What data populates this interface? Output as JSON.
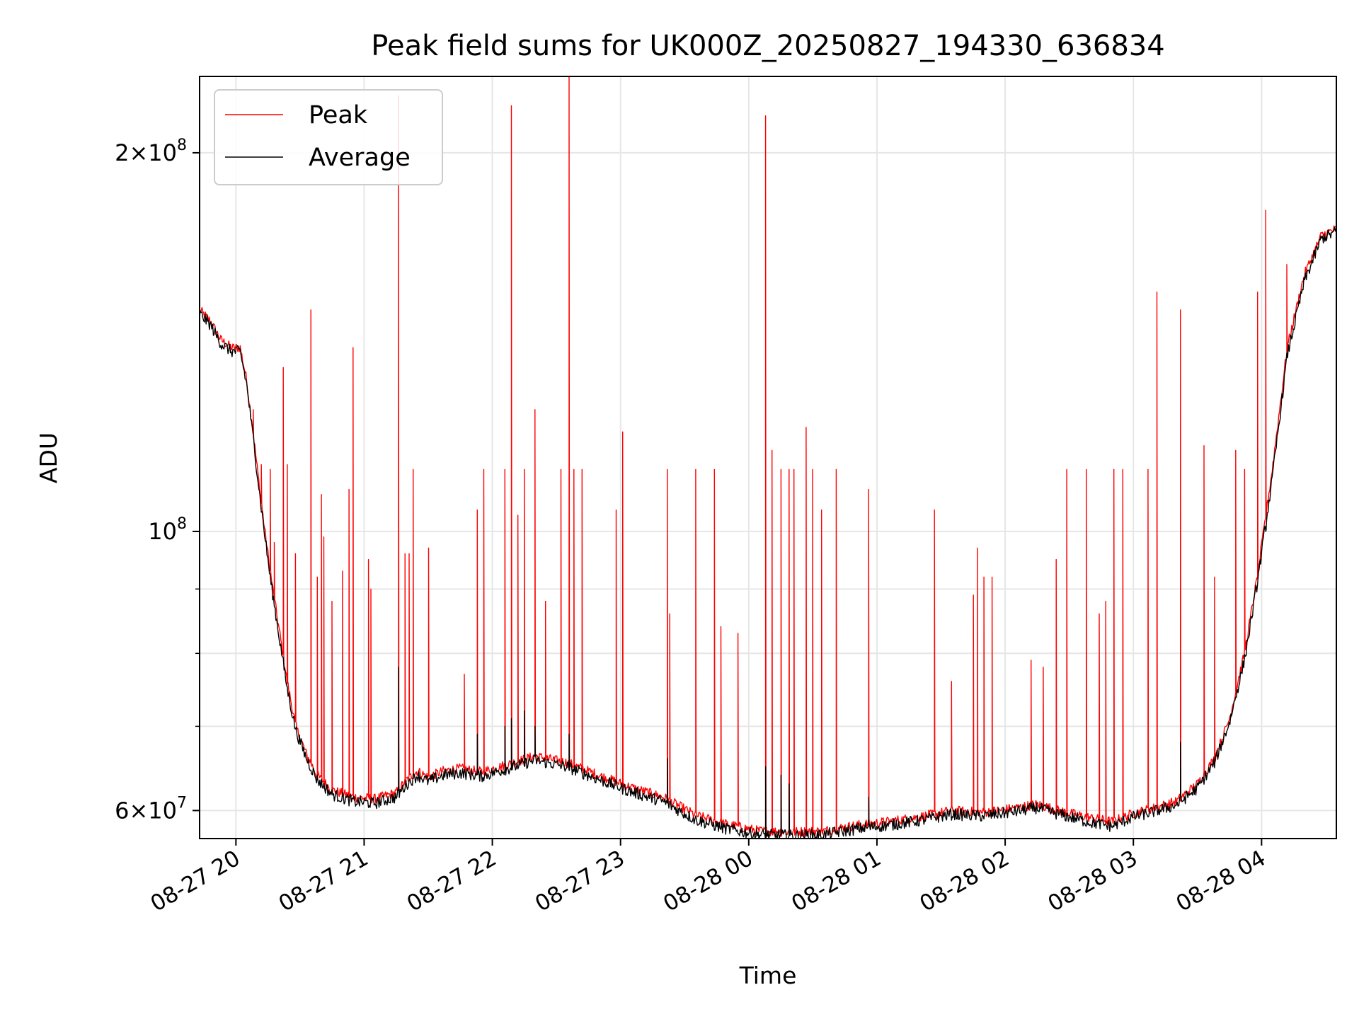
{
  "chart_data": {
    "type": "line",
    "title": "Peak field sums for UK000Z_20250827_194330_636834",
    "xlabel": "Time",
    "ylabel": "ADU",
    "y_scale": "log",
    "grid": true,
    "legend_position": "top-left",
    "xlim": [
      "2025-08-27 19:43",
      "2025-08-28 04:35"
    ],
    "ylim": [
      57000000,
      230000000
    ],
    "x_ticks": [
      {
        "t": "2025-08-27 20:00",
        "label": "08-27 20"
      },
      {
        "t": "2025-08-27 21:00",
        "label": "08-27 21"
      },
      {
        "t": "2025-08-27 22:00",
        "label": "08-27 22"
      },
      {
        "t": "2025-08-27 23:00",
        "label": "08-27 23"
      },
      {
        "t": "2025-08-28 00:00",
        "label": "08-28 00"
      },
      {
        "t": "2025-08-28 01:00",
        "label": "08-28 01"
      },
      {
        "t": "2025-08-28 02:00",
        "label": "08-28 02"
      },
      {
        "t": "2025-08-28 03:00",
        "label": "08-28 03"
      },
      {
        "t": "2025-08-28 04:00",
        "label": "08-28 04"
      }
    ],
    "y_major_ticks": [
      {
        "v": 60000000,
        "base": "6",
        "exp": "7"
      },
      {
        "v": 100000000,
        "base": "",
        "exp": "8"
      },
      {
        "v": 200000000,
        "base": "2",
        "exp": "8"
      }
    ],
    "y_minor_ticks": [
      70000000,
      80000000,
      90000000
    ],
    "times_sign": "×",
    "power_base": "10",
    "colors": {
      "peak": "#ff0000",
      "average": "#000000",
      "grid": "#e6e6e6"
    },
    "series": [
      {
        "name": "Peak",
        "color": "#ff0000",
        "baseline": [
          [
            "2025-08-27 19:43",
            150000000
          ],
          [
            "2025-08-27 19:48",
            147000000
          ],
          [
            "2025-08-27 19:53",
            142000000
          ],
          [
            "2025-08-27 19:58",
            140000000
          ],
          [
            "2025-08-27 20:02",
            140000000
          ],
          [
            "2025-08-27 20:05",
            132000000
          ],
          [
            "2025-08-27 20:08",
            120000000
          ],
          [
            "2025-08-27 20:12",
            105000000
          ],
          [
            "2025-08-27 20:16",
            93000000
          ],
          [
            "2025-08-27 20:20",
            84000000
          ],
          [
            "2025-08-27 20:24",
            76000000
          ],
          [
            "2025-08-27 20:28",
            70000000
          ],
          [
            "2025-08-27 20:33",
            66500000
          ],
          [
            "2025-08-27 20:38",
            64000000
          ],
          [
            "2025-08-27 20:45",
            62300000
          ],
          [
            "2025-08-27 20:55",
            61500000
          ],
          [
            "2025-08-27 21:05",
            61300000
          ],
          [
            "2025-08-27 21:15",
            62000000
          ],
          [
            "2025-08-27 21:20",
            63500000
          ],
          [
            "2025-08-27 21:25",
            64500000
          ],
          [
            "2025-08-27 21:30",
            63800000
          ],
          [
            "2025-08-27 21:37",
            64500000
          ],
          [
            "2025-08-27 21:45",
            64800000
          ],
          [
            "2025-08-27 21:55",
            64400000
          ],
          [
            "2025-08-27 22:10",
            65500000
          ],
          [
            "2025-08-27 22:20",
            66300000
          ],
          [
            "2025-08-27 22:35",
            65500000
          ],
          [
            "2025-08-27 22:50",
            64000000
          ],
          [
            "2025-08-27 23:05",
            62600000
          ],
          [
            "2025-08-27 23:20",
            61500000
          ],
          [
            "2025-08-27 23:35",
            59500000
          ],
          [
            "2025-08-27 23:50",
            58500000
          ],
          [
            "2025-08-28 00:05",
            57800000
          ],
          [
            "2025-08-28 00:20",
            57700000
          ],
          [
            "2025-08-28 00:35",
            57800000
          ],
          [
            "2025-08-28 00:50",
            58400000
          ],
          [
            "2025-08-28 01:05",
            58800000
          ],
          [
            "2025-08-28 01:20",
            59300000
          ],
          [
            "2025-08-28 01:35",
            60000000
          ],
          [
            "2025-08-28 01:50",
            59800000
          ],
          [
            "2025-08-28 02:05",
            60300000
          ],
          [
            "2025-08-28 02:15",
            60700000
          ],
          [
            "2025-08-28 02:25",
            60000000
          ],
          [
            "2025-08-28 02:40",
            59200000
          ],
          [
            "2025-08-28 02:50",
            58800000
          ],
          [
            "2025-08-28 03:00",
            59700000
          ],
          [
            "2025-08-28 03:10",
            60300000
          ],
          [
            "2025-08-28 03:20",
            61000000
          ],
          [
            "2025-08-28 03:30",
            63000000
          ],
          [
            "2025-08-28 03:38",
            66000000
          ],
          [
            "2025-08-28 03:45",
            71000000
          ],
          [
            "2025-08-28 03:52",
            80000000
          ],
          [
            "2025-08-28 03:58",
            92000000
          ],
          [
            "2025-08-28 04:05",
            112000000
          ],
          [
            "2025-08-28 04:12",
            140000000
          ],
          [
            "2025-08-28 04:20",
            160000000
          ],
          [
            "2025-08-28 04:28",
            172000000
          ],
          [
            "2025-08-28 04:35",
            174000000
          ]
        ],
        "spikes": [
          [
            "2025-08-27 20:08",
            125000000
          ],
          [
            "2025-08-27 20:12",
            113000000
          ],
          [
            "2025-08-27 20:16",
            112000000
          ],
          [
            "2025-08-27 20:18",
            98000000
          ],
          [
            "2025-08-27 20:22",
            135000000
          ],
          [
            "2025-08-27 20:24",
            113000000
          ],
          [
            "2025-08-27 20:28",
            96000000
          ],
          [
            "2025-08-27 20:35",
            150000000
          ],
          [
            "2025-08-27 20:38",
            92000000
          ],
          [
            "2025-08-27 20:40",
            107000000
          ],
          [
            "2025-08-27 20:41",
            99000000
          ],
          [
            "2025-08-27 20:45",
            88000000
          ],
          [
            "2025-08-27 20:50",
            93000000
          ],
          [
            "2025-08-27 20:53",
            108000000
          ],
          [
            "2025-08-27 20:55",
            140000000
          ],
          [
            "2025-08-27 21:02",
            95000000
          ],
          [
            "2025-08-27 21:03",
            90000000
          ],
          [
            "2025-08-27 21:16",
            222000000
          ],
          [
            "2025-08-27 21:19",
            96000000
          ],
          [
            "2025-08-27 21:21",
            96000000
          ],
          [
            "2025-08-27 21:23",
            112000000
          ],
          [
            "2025-08-27 21:30",
            97000000
          ],
          [
            "2025-08-27 21:47",
            77000000
          ],
          [
            "2025-08-27 21:53",
            104000000
          ],
          [
            "2025-08-27 21:56",
            112000000
          ],
          [
            "2025-08-27 22:06",
            112000000
          ],
          [
            "2025-08-27 22:09",
            218000000
          ],
          [
            "2025-08-27 22:12",
            103000000
          ],
          [
            "2025-08-27 22:15",
            112000000
          ],
          [
            "2025-08-27 22:20",
            125000000
          ],
          [
            "2025-08-27 22:25",
            88000000
          ],
          [
            "2025-08-27 22:32",
            112000000
          ],
          [
            "2025-08-27 22:36",
            232000000
          ],
          [
            "2025-08-27 22:38",
            112000000
          ],
          [
            "2025-08-27 22:42",
            112000000
          ],
          [
            "2025-08-27 22:58",
            104000000
          ],
          [
            "2025-08-27 23:01",
            120000000
          ],
          [
            "2025-08-27 23:22",
            112000000
          ],
          [
            "2025-08-27 23:23",
            86000000
          ],
          [
            "2025-08-27 23:35",
            112000000
          ],
          [
            "2025-08-27 23:44",
            112000000
          ],
          [
            "2025-08-27 23:47",
            84000000
          ],
          [
            "2025-08-27 23:55",
            83000000
          ],
          [
            "2025-08-28 00:08",
            214000000
          ],
          [
            "2025-08-28 00:11",
            116000000
          ],
          [
            "2025-08-28 00:15",
            112000000
          ],
          [
            "2025-08-28 00:19",
            112000000
          ],
          [
            "2025-08-28 00:21",
            112000000
          ],
          [
            "2025-08-28 00:27",
            121000000
          ],
          [
            "2025-08-28 00:30",
            112000000
          ],
          [
            "2025-08-28 00:34",
            104000000
          ],
          [
            "2025-08-28 00:41",
            112000000
          ],
          [
            "2025-08-28 00:56",
            108000000
          ],
          [
            "2025-08-28 01:27",
            104000000
          ],
          [
            "2025-08-28 01:35",
            76000000
          ],
          [
            "2025-08-28 01:45",
            89000000
          ],
          [
            "2025-08-28 01:47",
            97000000
          ],
          [
            "2025-08-28 01:50",
            92000000
          ],
          [
            "2025-08-28 01:54",
            92000000
          ],
          [
            "2025-08-28 02:12",
            79000000
          ],
          [
            "2025-08-28 02:18",
            78000000
          ],
          [
            "2025-08-28 02:24",
            95000000
          ],
          [
            "2025-08-28 02:29",
            112000000
          ],
          [
            "2025-08-28 02:38",
            112000000
          ],
          [
            "2025-08-28 02:44",
            86000000
          ],
          [
            "2025-08-28 02:47",
            88000000
          ],
          [
            "2025-08-28 02:51",
            112000000
          ],
          [
            "2025-08-28 02:55",
            112000000
          ],
          [
            "2025-08-28 03:07",
            112000000
          ],
          [
            "2025-08-28 03:11",
            155000000
          ],
          [
            "2025-08-28 03:22",
            150000000
          ],
          [
            "2025-08-28 03:33",
            117000000
          ],
          [
            "2025-08-28 03:38",
            92000000
          ],
          [
            "2025-08-28 03:48",
            116000000
          ],
          [
            "2025-08-28 03:52",
            112000000
          ],
          [
            "2025-08-28 03:58",
            155000000
          ],
          [
            "2025-08-28 04:02",
            180000000
          ],
          [
            "2025-08-28 04:12",
            163000000
          ]
        ]
      },
      {
        "name": "Average",
        "color": "#000000",
        "baseline": [
          [
            "2025-08-27 19:43",
            149000000
          ],
          [
            "2025-08-27 19:48",
            146000000
          ],
          [
            "2025-08-27 19:53",
            141000000
          ],
          [
            "2025-08-27 19:58",
            139000000
          ],
          [
            "2025-08-27 20:02",
            139000000
          ],
          [
            "2025-08-27 20:05",
            131000000
          ],
          [
            "2025-08-27 20:08",
            119000000
          ],
          [
            "2025-08-27 20:12",
            104000000
          ],
          [
            "2025-08-27 20:16",
            92000000
          ],
          [
            "2025-08-27 20:20",
            83000000
          ],
          [
            "2025-08-27 20:24",
            75000000
          ],
          [
            "2025-08-27 20:28",
            69500000
          ],
          [
            "2025-08-27 20:33",
            66000000
          ],
          [
            "2025-08-27 20:38",
            63500000
          ],
          [
            "2025-08-27 20:45",
            61800000
          ],
          [
            "2025-08-27 20:55",
            61000000
          ],
          [
            "2025-08-27 21:05",
            60800000
          ],
          [
            "2025-08-27 21:15",
            61500000
          ],
          [
            "2025-08-27 21:20",
            63000000
          ],
          [
            "2025-08-27 21:25",
            64000000
          ],
          [
            "2025-08-27 21:30",
            63300000
          ],
          [
            "2025-08-27 21:37",
            64000000
          ],
          [
            "2025-08-27 21:45",
            64300000
          ],
          [
            "2025-08-27 21:55",
            63900000
          ],
          [
            "2025-08-27 22:10",
            65000000
          ],
          [
            "2025-08-27 22:20",
            65800000
          ],
          [
            "2025-08-27 22:35",
            65000000
          ],
          [
            "2025-08-27 22:50",
            63500000
          ],
          [
            "2025-08-27 23:05",
            62100000
          ],
          [
            "2025-08-27 23:20",
            61000000
          ],
          [
            "2025-08-27 23:35",
            59000000
          ],
          [
            "2025-08-27 23:50",
            58000000
          ],
          [
            "2025-08-28 00:05",
            57400000
          ],
          [
            "2025-08-28 00:20",
            57300000
          ],
          [
            "2025-08-28 00:35",
            57400000
          ],
          [
            "2025-08-28 00:50",
            58000000
          ],
          [
            "2025-08-28 01:05",
            58400000
          ],
          [
            "2025-08-28 01:20",
            58900000
          ],
          [
            "2025-08-28 01:35",
            59600000
          ],
          [
            "2025-08-28 01:50",
            59400000
          ],
          [
            "2025-08-28 02:05",
            59900000
          ],
          [
            "2025-08-28 02:15",
            60300000
          ],
          [
            "2025-08-28 02:25",
            59600000
          ],
          [
            "2025-08-28 02:40",
            58700000
          ],
          [
            "2025-08-28 02:50",
            58300000
          ],
          [
            "2025-08-28 03:00",
            59300000
          ],
          [
            "2025-08-28 03:10",
            59900000
          ],
          [
            "2025-08-28 03:20",
            60600000
          ],
          [
            "2025-08-28 03:30",
            62500000
          ],
          [
            "2025-08-28 03:38",
            65500000
          ],
          [
            "2025-08-28 03:45",
            70500000
          ],
          [
            "2025-08-28 03:52",
            79000000
          ],
          [
            "2025-08-28 03:58",
            91000000
          ],
          [
            "2025-08-28 04:05",
            110000000
          ],
          [
            "2025-08-28 04:12",
            138000000
          ],
          [
            "2025-08-28 04:20",
            158000000
          ],
          [
            "2025-08-28 04:28",
            171000000
          ],
          [
            "2025-08-28 04:35",
            173000000
          ]
        ],
        "spikes": [
          [
            "2025-08-27 21:16",
            78000000
          ],
          [
            "2025-08-27 21:53",
            69000000
          ],
          [
            "2025-08-27 22:06",
            70000000
          ],
          [
            "2025-08-27 22:09",
            71000000
          ],
          [
            "2025-08-27 22:15",
            72000000
          ],
          [
            "2025-08-27 22:20",
            70000000
          ],
          [
            "2025-08-27 22:36",
            69000000
          ],
          [
            "2025-08-27 23:22",
            66000000
          ],
          [
            "2025-08-28 00:08",
            65000000
          ],
          [
            "2025-08-28 00:15",
            64000000
          ],
          [
            "2025-08-28 00:19",
            63000000
          ],
          [
            "2025-08-28 00:56",
            61500000
          ],
          [
            "2025-08-28 03:22",
            68000000
          ],
          [
            "2025-08-28 04:02",
            100000000
          ]
        ]
      }
    ]
  }
}
